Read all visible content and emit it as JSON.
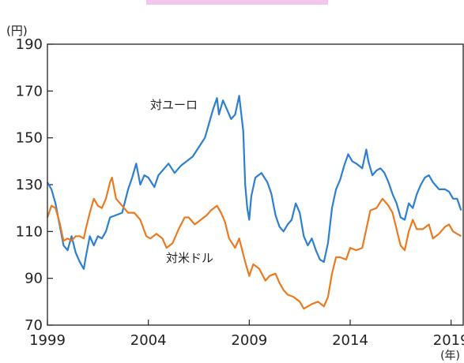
{
  "chart_data": {
    "type": "line",
    "y_unit": "(円)",
    "x_unit": "(年)",
    "ylim": [
      70,
      190
    ],
    "y_ticks": [
      "190",
      "170",
      "150",
      "130",
      "110",
      "90",
      "70"
    ],
    "y_tick_values": [
      190,
      170,
      150,
      130,
      110,
      90,
      70
    ],
    "xlim": [
      1999.0,
      2019.6
    ],
    "x_ticks": [
      "1999",
      "2004",
      "2009",
      "2014",
      "2019"
    ],
    "x_tick_values": [
      1999,
      2004,
      2009,
      2014,
      2019
    ],
    "grid": false,
    "legend": "inline labels",
    "series": [
      {
        "name": "対ユーロ",
        "color": "#2d7fd0",
        "points": [
          [
            1999.0,
            131
          ],
          [
            1999.2,
            128
          ],
          [
            1999.4,
            122
          ],
          [
            1999.6,
            113
          ],
          [
            1999.8,
            104
          ],
          [
            2000.0,
            102
          ],
          [
            2000.2,
            108
          ],
          [
            2000.4,
            101
          ],
          [
            2000.6,
            97
          ],
          [
            2000.8,
            94
          ],
          [
            2000.9,
            99
          ],
          [
            2001.1,
            108
          ],
          [
            2001.3,
            104
          ],
          [
            2001.5,
            108
          ],
          [
            2001.7,
            107
          ],
          [
            2001.9,
            110
          ],
          [
            2002.1,
            116
          ],
          [
            2002.4,
            117
          ],
          [
            2002.7,
            118
          ],
          [
            2003.0,
            128
          ],
          [
            2003.2,
            133
          ],
          [
            2003.4,
            139
          ],
          [
            2003.6,
            130
          ],
          [
            2003.8,
            134
          ],
          [
            2004.0,
            133
          ],
          [
            2004.3,
            129
          ],
          [
            2004.5,
            134
          ],
          [
            2004.8,
            137
          ],
          [
            2005.0,
            139
          ],
          [
            2005.3,
            135
          ],
          [
            2005.6,
            138
          ],
          [
            2005.9,
            140
          ],
          [
            2006.2,
            142
          ],
          [
            2006.5,
            146
          ],
          [
            2006.8,
            150
          ],
          [
            2007.0,
            156
          ],
          [
            2007.2,
            162
          ],
          [
            2007.4,
            167
          ],
          [
            2007.5,
            160
          ],
          [
            2007.7,
            166
          ],
          [
            2007.9,
            162
          ],
          [
            2008.1,
            158
          ],
          [
            2008.3,
            160
          ],
          [
            2008.5,
            168
          ],
          [
            2008.7,
            153
          ],
          [
            2008.8,
            130
          ],
          [
            2008.9,
            120
          ],
          [
            2009.0,
            115
          ],
          [
            2009.1,
            125
          ],
          [
            2009.3,
            133
          ],
          [
            2009.6,
            135
          ],
          [
            2009.9,
            131
          ],
          [
            2010.1,
            126
          ],
          [
            2010.3,
            117
          ],
          [
            2010.5,
            112
          ],
          [
            2010.7,
            110
          ],
          [
            2010.9,
            113
          ],
          [
            2011.1,
            115
          ],
          [
            2011.3,
            122
          ],
          [
            2011.5,
            118
          ],
          [
            2011.7,
            108
          ],
          [
            2011.9,
            104
          ],
          [
            2012.1,
            107
          ],
          [
            2012.3,
            102
          ],
          [
            2012.5,
            98
          ],
          [
            2012.7,
            97
          ],
          [
            2012.9,
            105
          ],
          [
            2013.1,
            120
          ],
          [
            2013.3,
            128
          ],
          [
            2013.5,
            132
          ],
          [
            2013.7,
            138
          ],
          [
            2013.9,
            143
          ],
          [
            2014.1,
            140
          ],
          [
            2014.3,
            139
          ],
          [
            2014.6,
            137
          ],
          [
            2014.8,
            145
          ],
          [
            2014.9,
            140
          ],
          [
            2015.1,
            134
          ],
          [
            2015.3,
            136
          ],
          [
            2015.5,
            137
          ],
          [
            2015.7,
            135
          ],
          [
            2015.9,
            131
          ],
          [
            2016.1,
            126
          ],
          [
            2016.3,
            122
          ],
          [
            2016.5,
            116
          ],
          [
            2016.7,
            115
          ],
          [
            2016.9,
            122
          ],
          [
            2017.1,
            120
          ],
          [
            2017.3,
            126
          ],
          [
            2017.5,
            130
          ],
          [
            2017.7,
            133
          ],
          [
            2017.9,
            134
          ],
          [
            2018.1,
            131
          ],
          [
            2018.4,
            128
          ],
          [
            2018.7,
            128
          ],
          [
            2018.9,
            127
          ],
          [
            2019.1,
            124
          ],
          [
            2019.3,
            124
          ],
          [
            2019.5,
            119
          ]
        ]
      },
      {
        "name": "対米ドル",
        "color": "#ec7a21",
        "points": [
          [
            1999.0,
            116
          ],
          [
            1999.2,
            121
          ],
          [
            1999.4,
            120
          ],
          [
            1999.6,
            114
          ],
          [
            1999.8,
            106
          ],
          [
            2000.0,
            107
          ],
          [
            2000.2,
            106
          ],
          [
            2000.4,
            108
          ],
          [
            2000.6,
            108
          ],
          [
            2000.8,
            107
          ],
          [
            2000.9,
            111
          ],
          [
            2001.1,
            118
          ],
          [
            2001.3,
            124
          ],
          [
            2001.5,
            121
          ],
          [
            2001.7,
            120
          ],
          [
            2001.9,
            124
          ],
          [
            2002.1,
            131
          ],
          [
            2002.2,
            133
          ],
          [
            2002.4,
            124
          ],
          [
            2002.7,
            121
          ],
          [
            2003.0,
            118
          ],
          [
            2003.3,
            118
          ],
          [
            2003.6,
            115
          ],
          [
            2003.9,
            108
          ],
          [
            2004.1,
            107
          ],
          [
            2004.4,
            109
          ],
          [
            2004.7,
            107
          ],
          [
            2004.9,
            103
          ],
          [
            2005.2,
            105
          ],
          [
            2005.5,
            111
          ],
          [
            2005.8,
            116
          ],
          [
            2006.0,
            116
          ],
          [
            2006.3,
            113
          ],
          [
            2006.6,
            115
          ],
          [
            2006.9,
            117
          ],
          [
            2007.1,
            119
          ],
          [
            2007.4,
            121
          ],
          [
            2007.6,
            118
          ],
          [
            2007.8,
            114
          ],
          [
            2008.0,
            107
          ],
          [
            2008.3,
            103
          ],
          [
            2008.5,
            107
          ],
          [
            2008.8,
            97
          ],
          [
            2009.0,
            91
          ],
          [
            2009.2,
            96
          ],
          [
            2009.5,
            94
          ],
          [
            2009.8,
            89
          ],
          [
            2010.0,
            91
          ],
          [
            2010.3,
            92
          ],
          [
            2010.5,
            88
          ],
          [
            2010.7,
            85
          ],
          [
            2010.9,
            83
          ],
          [
            2011.2,
            82
          ],
          [
            2011.5,
            80
          ],
          [
            2011.7,
            77
          ],
          [
            2011.9,
            78
          ],
          [
            2012.1,
            79
          ],
          [
            2012.4,
            80
          ],
          [
            2012.7,
            78
          ],
          [
            2012.9,
            82
          ],
          [
            2013.1,
            92
          ],
          [
            2013.3,
            99
          ],
          [
            2013.5,
            99
          ],
          [
            2013.8,
            98
          ],
          [
            2014.0,
            103
          ],
          [
            2014.3,
            102
          ],
          [
            2014.6,
            103
          ],
          [
            2014.8,
            111
          ],
          [
            2015.0,
            119
          ],
          [
            2015.3,
            120
          ],
          [
            2015.6,
            124
          ],
          [
            2015.9,
            121
          ],
          [
            2016.1,
            118
          ],
          [
            2016.3,
            111
          ],
          [
            2016.5,
            104
          ],
          [
            2016.7,
            102
          ],
          [
            2016.9,
            110
          ],
          [
            2017.1,
            115
          ],
          [
            2017.3,
            111
          ],
          [
            2017.6,
            111
          ],
          [
            2017.9,
            113
          ],
          [
            2018.1,
            107
          ],
          [
            2018.4,
            109
          ],
          [
            2018.7,
            112
          ],
          [
            2018.9,
            113
          ],
          [
            2019.1,
            110
          ],
          [
            2019.3,
            109
          ],
          [
            2019.5,
            108
          ]
        ]
      }
    ],
    "annotations": [
      {
        "text": "対ユーロ",
        "series": 0
      },
      {
        "text": "対米ドル",
        "series": 1
      }
    ]
  }
}
